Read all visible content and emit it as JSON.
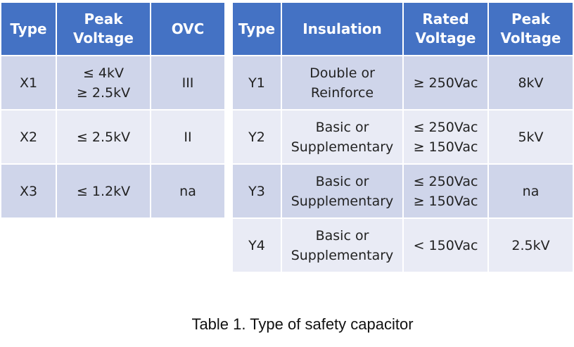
{
  "x_table": {
    "headers": [
      "Type",
      "Peak\nVoltage",
      "OVC"
    ],
    "rows": [
      [
        "X1",
        "≤ 4kV\n≥ 2.5kV",
        "III"
      ],
      [
        "X2",
        "≤ 2.5kV",
        "II"
      ],
      [
        "X3",
        "≤ 1.2kV",
        "na"
      ]
    ]
  },
  "y_table": {
    "headers": [
      "Type",
      "Insulation",
      "Rated\nVoltage",
      "Peak\nVoltage"
    ],
    "rows": [
      [
        "Y1",
        "Double or\nReinforce",
        "≥ 250Vac",
        "8kV"
      ],
      [
        "Y2",
        "Basic or\nSupplementary",
        "≤ 250Vac\n≥ 150Vac",
        "5kV"
      ],
      [
        "Y3",
        "Basic or\nSupplementary",
        "≤ 250Vac\n≥ 150Vac",
        "na"
      ],
      [
        "Y4",
        "Basic or\nSupplementary",
        "< 150Vac",
        "2.5kV"
      ]
    ]
  },
  "caption": "Table 1. Type of safety capacitor",
  "colors": {
    "header_bg": "#4472c4",
    "row_dark": "#cfd5ea",
    "row_light": "#e9ebf5"
  }
}
